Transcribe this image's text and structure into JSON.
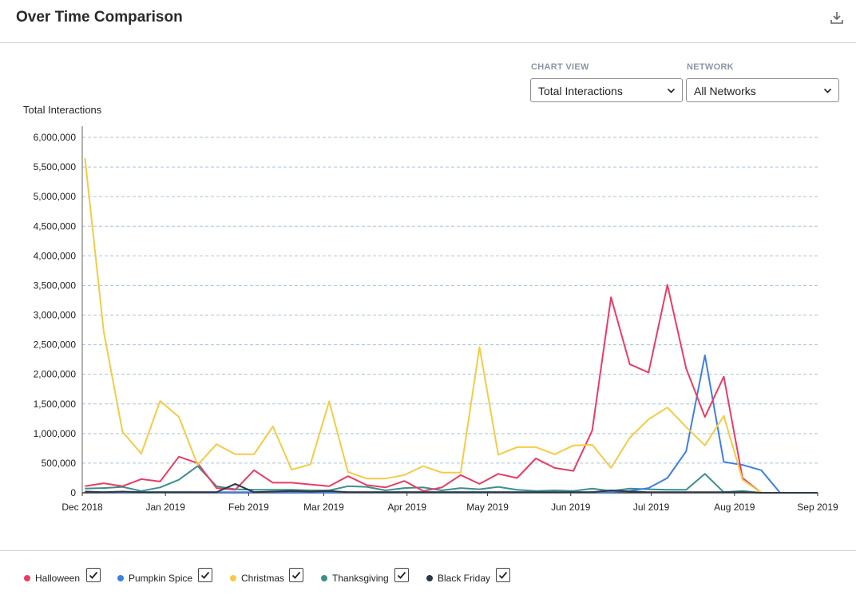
{
  "header": {
    "title": "Over Time Comparison",
    "download_icon": "download-icon"
  },
  "controls": {
    "chart_view": {
      "label": "CHART VIEW",
      "value": "Total Interactions"
    },
    "network": {
      "label": "NETWORK",
      "value": "All Networks"
    }
  },
  "colors": {
    "Halloween": "#ea3c63",
    "Pumpkin Spice": "#3d7ee6",
    "Christmas": "#f5cb45",
    "Thanksgiving": "#3a8f8c",
    "Black Friday": "#2d3648"
  },
  "chart_data": {
    "type": "line",
    "ylabel": "Total Interactions",
    "ylim": [
      0,
      6000000
    ],
    "yticks": [
      0,
      500000,
      1000000,
      1500000,
      2000000,
      2500000,
      3000000,
      3500000,
      4000000,
      4500000,
      5000000,
      5500000,
      6000000
    ],
    "ytick_labels": [
      "0",
      "500,000",
      "1,000,000",
      "1,500,000",
      "2,000,000",
      "2,500,000",
      "3,000,000",
      "3,500,000",
      "4,000,000",
      "4,500,000",
      "5,000,000",
      "5,500,000",
      "6,000,000"
    ],
    "xtick_labels": [
      "Dec 2018",
      "Jan 2019",
      "Feb 2019",
      "Mar 2019",
      "Apr 2019",
      "May 2019",
      "Jun 2019",
      "Jul 2019",
      "Aug 2019",
      "Sep 2019"
    ],
    "x": [
      "2018-12-02",
      "2018-12-09",
      "2018-12-16",
      "2018-12-23",
      "2018-12-30",
      "2019-01-06",
      "2019-01-13",
      "2019-01-20",
      "2019-01-27",
      "2019-02-03",
      "2019-02-10",
      "2019-02-17",
      "2019-02-24",
      "2019-03-03",
      "2019-03-10",
      "2019-03-17",
      "2019-03-24",
      "2019-03-31",
      "2019-04-07",
      "2019-04-14",
      "2019-04-21",
      "2019-04-28",
      "2019-05-05",
      "2019-05-12",
      "2019-05-19",
      "2019-05-26",
      "2019-06-02",
      "2019-06-09",
      "2019-06-16",
      "2019-06-23",
      "2019-06-30",
      "2019-07-07",
      "2019-07-14",
      "2019-07-21",
      "2019-07-28",
      "2019-08-04",
      "2019-08-11",
      "2019-08-18",
      "2019-08-25",
      "2019-09-01"
    ],
    "grid": "dashed horizontal",
    "legend_position": "bottom",
    "series": [
      {
        "name": "Halloween",
        "values": [
          110000,
          160000,
          110000,
          230000,
          190000,
          610000,
          500000,
          80000,
          50000,
          380000,
          170000,
          170000,
          140000,
          110000,
          280000,
          130000,
          90000,
          200000,
          30000,
          90000,
          300000,
          150000,
          320000,
          250000,
          580000,
          420000,
          370000,
          1050000,
          3300000,
          2170000,
          2030000,
          3510000,
          2100000,
          1280000,
          1960000,
          250000,
          0,
          0,
          0,
          0
        ]
      },
      {
        "name": "Pumpkin Spice",
        "values": [
          20000,
          10000,
          10000,
          10000,
          10000,
          10000,
          10000,
          10000,
          10000,
          10000,
          10000,
          10000,
          10000,
          10000,
          10000,
          10000,
          10000,
          10000,
          10000,
          10000,
          10000,
          10000,
          10000,
          10000,
          10000,
          10000,
          10000,
          10000,
          10000,
          30000,
          80000,
          250000,
          700000,
          2320000,
          520000,
          470000,
          380000,
          0,
          0,
          0
        ]
      },
      {
        "name": "Christmas",
        "values": [
          5650000,
          2720000,
          1030000,
          660000,
          1550000,
          1280000,
          470000,
          820000,
          650000,
          650000,
          1120000,
          390000,
          480000,
          1540000,
          350000,
          240000,
          240000,
          300000,
          450000,
          340000,
          340000,
          2460000,
          640000,
          770000,
          770000,
          650000,
          800000,
          810000,
          420000,
          930000,
          1240000,
          1440000,
          1110000,
          800000,
          1300000,
          220000,
          0,
          0,
          0,
          0
        ]
      },
      {
        "name": "Thanksgiving",
        "values": [
          70000,
          80000,
          100000,
          30000,
          90000,
          220000,
          450000,
          110000,
          60000,
          50000,
          50000,
          50000,
          40000,
          40000,
          110000,
          100000,
          40000,
          80000,
          90000,
          40000,
          80000,
          60000,
          100000,
          50000,
          30000,
          40000,
          30000,
          70000,
          30000,
          70000,
          60000,
          50000,
          50000,
          320000,
          10000,
          30000,
          0,
          0,
          0,
          0
        ]
      },
      {
        "name": "Black Friday",
        "values": [
          20000,
          10000,
          20000,
          10000,
          10000,
          10000,
          10000,
          10000,
          150000,
          10000,
          20000,
          30000,
          20000,
          30000,
          10000,
          10000,
          10000,
          10000,
          10000,
          10000,
          10000,
          10000,
          10000,
          10000,
          10000,
          10000,
          10000,
          10000,
          40000,
          20000,
          10000,
          10000,
          10000,
          10000,
          10000,
          10000,
          0,
          0,
          0,
          0
        ]
      }
    ]
  },
  "legend": [
    {
      "name": "Halloween",
      "checked": true
    },
    {
      "name": "Pumpkin Spice",
      "checked": true
    },
    {
      "name": "Christmas",
      "checked": true
    },
    {
      "name": "Thanksgiving",
      "checked": true
    },
    {
      "name": "Black Friday",
      "checked": true
    }
  ]
}
